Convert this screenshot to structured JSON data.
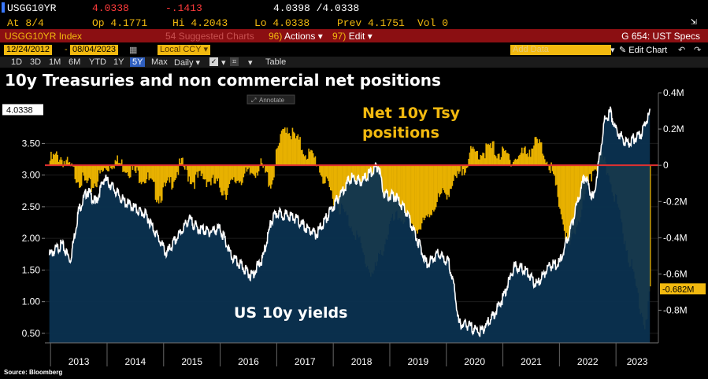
{
  "quote": {
    "ticker": "USGG10YR",
    "last": "4.0338",
    "change": "-.1413",
    "bid_ask": "4.0398 /4.0338",
    "at_label": "At 8/4",
    "open": "Op 4.1771",
    "high": "Hi 4.2043",
    "low": "Lo 4.0338",
    "prev": "Prev 4.1751",
    "vol": "Vol 0"
  },
  "menu": {
    "security": "USGG10YR Index",
    "suggested": "Suggested Charts",
    "suggested_num": "54",
    "actions": "Actions",
    "actions_num": "96)",
    "edit": "Edit",
    "edit_num": "97)",
    "right": "G 654: UST Specs"
  },
  "toolbar": {
    "start_date": "12/24/2012",
    "end_date": "08/04/2023",
    "currency": "Local CCY",
    "add_data": "Add Data",
    "edit_chart": "Edit Chart",
    "periods": [
      "1D",
      "3D",
      "1M",
      "6M",
      "YTD",
      "1Y",
      "5Y",
      "Max"
    ],
    "selected_period": "5Y",
    "frequency": "Daily",
    "table": "Table",
    "annotate": "Annotate"
  },
  "chart_data": {
    "type": "line",
    "title": "10y Treasuries and non commercial net positions",
    "source": "Source: Bloomberg",
    "x_labels": [
      "2013",
      "2014",
      "2015",
      "2016",
      "2017",
      "2018",
      "2019",
      "2020",
      "2021",
      "2022",
      "2023"
    ],
    "left_axis": {
      "ticks": [
        "3.50",
        "3.00",
        "2.50",
        "2.00",
        "1.50",
        "1.00",
        "0.50"
      ],
      "range": [
        0.35,
        4.3
      ],
      "last_value": "4.0338"
    },
    "right_axis": {
      "ticks": [
        "0.4M",
        "0.2M",
        "0",
        "-0.2M",
        "-0.4M",
        "-0.6M",
        "-0.8M"
      ],
      "range": [
        -0.98,
        0.4
      ],
      "last_value": "-0.682M"
    },
    "series": [
      {
        "name": "US 10y yields",
        "axis": "left",
        "color": "#ffffff",
        "x": [
          2012.98,
          2013.2,
          2013.35,
          2013.5,
          2013.65,
          2013.8,
          2013.95,
          2014.1,
          2014.3,
          2014.5,
          2014.7,
          2014.85,
          2015.05,
          2015.2,
          2015.45,
          2015.6,
          2015.8,
          2016.0,
          2016.2,
          2016.45,
          2016.55,
          2016.75,
          2016.9,
          2017.0,
          2017.3,
          2017.5,
          2017.7,
          2017.9,
          2018.1,
          2018.3,
          2018.5,
          2018.8,
          2018.9,
          2019.1,
          2019.3,
          2019.5,
          2019.65,
          2019.85,
          2020.05,
          2020.15,
          2020.22,
          2020.4,
          2020.6,
          2020.8,
          2021.0,
          2021.2,
          2021.4,
          2021.6,
          2021.8,
          2022.0,
          2022.2,
          2022.45,
          2022.6,
          2022.8,
          2022.9,
          2023.0,
          2023.2,
          2023.45,
          2023.6
        ],
        "y": [
          1.78,
          1.95,
          1.7,
          2.5,
          2.8,
          2.6,
          3.0,
          2.85,
          2.62,
          2.52,
          2.4,
          2.15,
          1.8,
          2.0,
          2.35,
          2.2,
          2.15,
          2.2,
          1.75,
          1.55,
          1.45,
          1.72,
          2.3,
          2.45,
          2.38,
          2.22,
          2.1,
          2.4,
          2.7,
          3.0,
          2.95,
          3.2,
          2.75,
          2.7,
          2.45,
          2.0,
          1.65,
          1.8,
          1.65,
          1.2,
          0.7,
          0.66,
          0.56,
          0.78,
          1.1,
          1.6,
          1.55,
          1.3,
          1.6,
          1.65,
          2.2,
          3.05,
          2.65,
          3.9,
          4.05,
          3.75,
          3.55,
          3.7,
          4.03
        ]
      },
      {
        "name": "Net 10y Tsy positions",
        "axis": "right",
        "color": "#e8b100",
        "x": [
          2012.98,
          2013.15,
          2013.3,
          2013.5,
          2013.7,
          2013.9,
          2014.1,
          2014.3,
          2014.5,
          2014.7,
          2014.9,
          2015.1,
          2015.3,
          2015.5,
          2015.7,
          2015.9,
          2016.1,
          2016.3,
          2016.5,
          2016.7,
          2016.9,
          2017.0,
          2017.15,
          2017.3,
          2017.5,
          2017.7,
          2017.85,
          2018.0,
          2018.2,
          2018.4,
          2018.55,
          2018.7,
          2018.85,
          2019.0,
          2019.2,
          2019.4,
          2019.6,
          2019.8,
          2020.0,
          2020.2,
          2020.4,
          2020.6,
          2020.8,
          2021.0,
          2021.2,
          2021.4,
          2021.6,
          2021.8,
          2022.0,
          2022.15,
          2022.3,
          2022.45,
          2022.6,
          2022.75,
          2022.9,
          2023.05,
          2023.2,
          2023.35,
          2023.5,
          2023.6
        ],
        "y": [
          0.05,
          0.08,
          0.02,
          -0.05,
          -0.1,
          -0.02,
          0.05,
          0.02,
          -0.02,
          -0.05,
          -0.15,
          -0.08,
          0.03,
          -0.06,
          -0.04,
          -0.08,
          -0.12,
          -0.05,
          -0.03,
          0.02,
          -0.08,
          0.1,
          0.25,
          0.18,
          0.1,
          0.05,
          -0.08,
          -0.15,
          -0.25,
          -0.35,
          -0.5,
          -0.58,
          -0.45,
          -0.3,
          -0.25,
          -0.35,
          -0.3,
          -0.18,
          -0.12,
          -0.05,
          0.08,
          0.1,
          0.12,
          0.08,
          0.06,
          0.1,
          0.15,
          0.05,
          -0.2,
          -0.45,
          -0.3,
          -0.15,
          0.02,
          0.05,
          -0.05,
          -0.25,
          -0.45,
          -0.65,
          -0.85,
          -0.68
        ]
      }
    ],
    "annotations": [
      {
        "text": "Net 10y Tsy positions",
        "lines": [
          "Net 10y Tsy",
          "positions"
        ],
        "color": "#f2b90f"
      },
      {
        "text": "US 10y yields",
        "color": "#ffffff"
      }
    ]
  }
}
